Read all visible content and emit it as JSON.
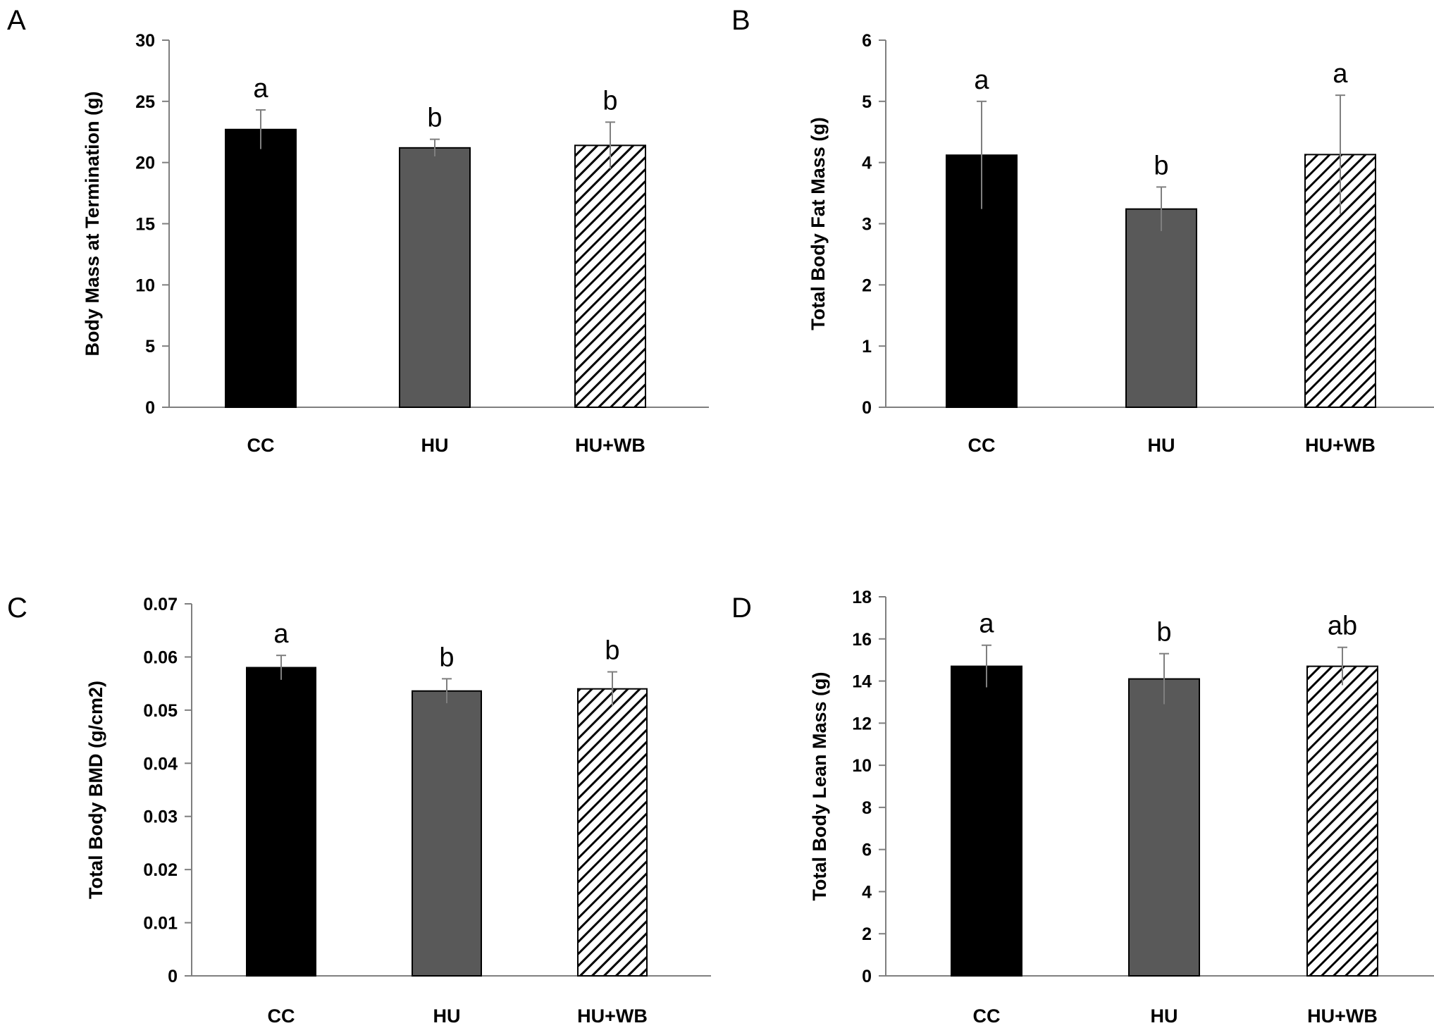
{
  "chart_data": [
    {
      "type": "bar",
      "panel": "A",
      "title": "",
      "xlabel": "",
      "ylabel": "Body Mass at Termination (g)",
      "categories": [
        "CC",
        "HU",
        "HU+WB"
      ],
      "values": [
        22.7,
        21.2,
        21.4
      ],
      "errors": [
        1.6,
        0.7,
        1.9
      ],
      "significance": [
        "a",
        "b",
        "b"
      ],
      "ylim": [
        0,
        30
      ],
      "yticks": [
        0,
        5,
        10,
        15,
        20,
        25,
        30
      ],
      "ytick_labels": [
        "0",
        "5",
        "10",
        "15",
        "20",
        "25",
        "30"
      ],
      "grid": false
    },
    {
      "type": "bar",
      "panel": "B",
      "title": "",
      "xlabel": "",
      "ylabel": "Total Body Fat Mass (g)",
      "categories": [
        "CC",
        "HU",
        "HU+WB"
      ],
      "values": [
        4.12,
        3.24,
        4.13
      ],
      "errors": [
        0.88,
        0.36,
        0.97
      ],
      "significance": [
        "a",
        "b",
        "a"
      ],
      "ylim": [
        0,
        6
      ],
      "yticks": [
        0,
        1,
        2,
        3,
        4,
        5,
        6
      ],
      "ytick_labels": [
        "0",
        "1",
        "2",
        "3",
        "4",
        "5",
        "6"
      ],
      "grid": false
    },
    {
      "type": "bar",
      "panel": "C",
      "title": "",
      "xlabel": "",
      "ylabel": "Total Body BMD (g/cm2)",
      "categories": [
        "CC",
        "HU",
        "HU+WB"
      ],
      "values": [
        0.058,
        0.0536,
        0.054
      ],
      "errors": [
        0.0023,
        0.0023,
        0.0032
      ],
      "significance": [
        "a",
        "b",
        "b"
      ],
      "ylim": [
        0,
        0.07
      ],
      "yticks": [
        0,
        0.01,
        0.02,
        0.03,
        0.04,
        0.05,
        0.06,
        0.07
      ],
      "ytick_labels": [
        "0",
        "0.01",
        "0.02",
        "0.03",
        "0.04",
        "0.05",
        "0.06",
        "0.07"
      ],
      "grid": false
    },
    {
      "type": "bar",
      "panel": "D",
      "title": "",
      "xlabel": "",
      "ylabel": "Total Body Lean Mass (g)",
      "categories": [
        "CC",
        "HU",
        "HU+WB"
      ],
      "values": [
        14.7,
        14.1,
        14.7
      ],
      "errors": [
        1.0,
        1.2,
        0.9
      ],
      "significance": [
        "a",
        "b",
        "ab"
      ],
      "ylim": [
        0,
        18
      ],
      "yticks": [
        0,
        2,
        4,
        6,
        8,
        10,
        12,
        14,
        16,
        18
      ],
      "ytick_labels": [
        "0",
        "2",
        "4",
        "6",
        "8",
        "10",
        "12",
        "14",
        "16",
        "18"
      ],
      "grid": false
    }
  ],
  "bar_styles": {
    "CC": {
      "fill": "#000000",
      "pattern": "solid"
    },
    "HU": {
      "fill": "#595959",
      "pattern": "solid"
    },
    "HU+WB": {
      "fill": "#ffffff",
      "pattern": "diagonal-hatch"
    }
  },
  "colors": {
    "axis": "#7f7f7f",
    "error_bar": "#7f7f7f",
    "text": "#000000"
  }
}
